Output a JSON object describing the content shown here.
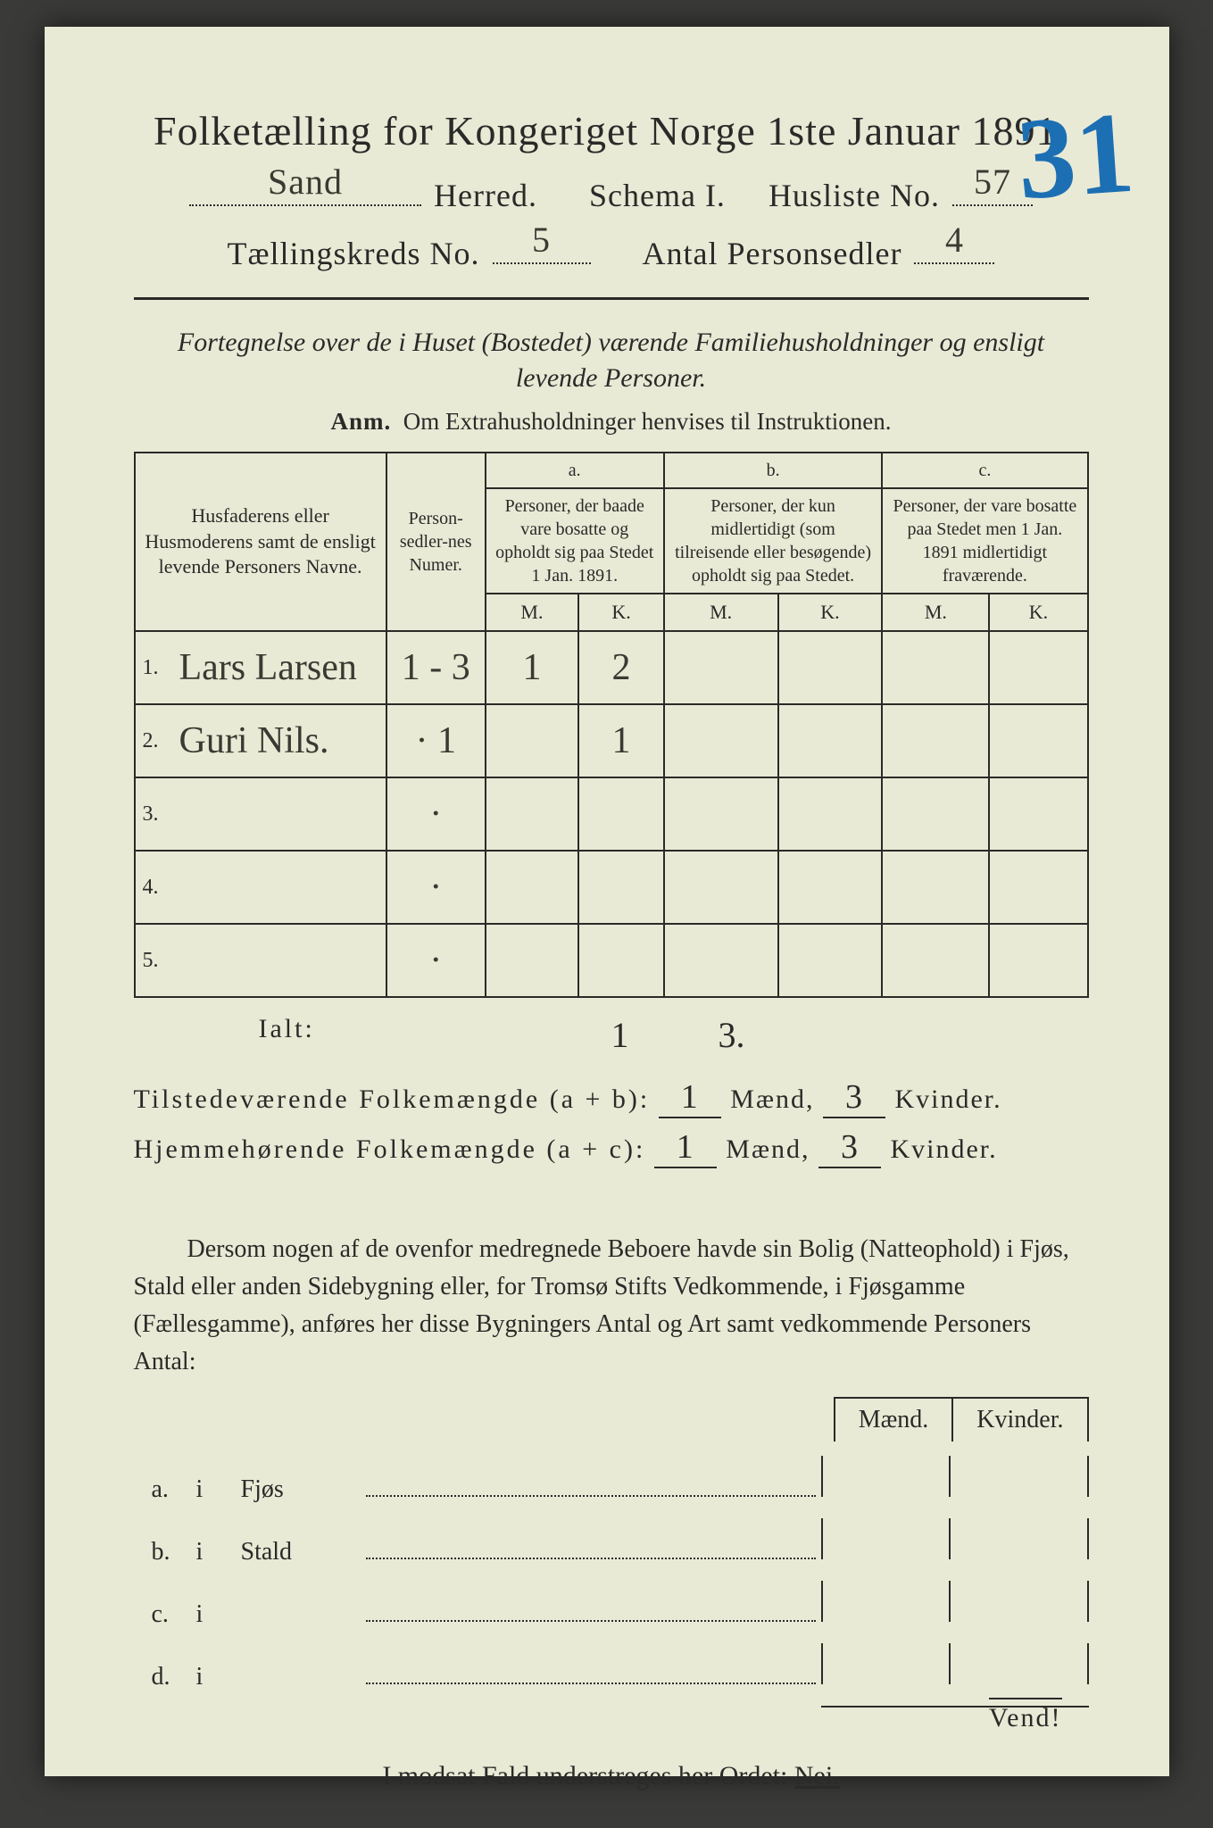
{
  "title": "Folketælling for Kongeriget Norge 1ste Januar 1891.",
  "stamp": "31",
  "line2": {
    "herred_value": "Sand",
    "herred_label": "Herred.",
    "schema_label": "Schema I.",
    "husliste_label": "Husliste No.",
    "husliste_value": "57"
  },
  "line3": {
    "kreds_label": "Tællingskreds No.",
    "kreds_value": "5",
    "person_label": "Antal Personsedler",
    "person_value": "4"
  },
  "fortegnelse_pre": "Fortegnelse over de i Huset (Bostedet) værende Familiehusholdninger og ensligt",
  "fortegnelse_post": "levende Personer.",
  "anm_label": "Anm.",
  "anm_text": "Om Extrahusholdninger henvises til Instruktionen.",
  "table": {
    "col_names": "Husfaderens eller Husmoderens samt de ensligt levende Personers Navne.",
    "col_numer": "Person-sedler-nes Numer.",
    "col_a_head": "a.",
    "col_a": "Personer, der baade vare bosatte og opholdt sig paa Stedet 1 Jan. 1891.",
    "col_b_head": "b.",
    "col_b": "Personer, der kun midlertidigt (som tilreisende eller besøgende) opholdt sig paa Stedet.",
    "col_c_head": "c.",
    "col_c": "Personer, der vare bosatte paa Stedet men 1 Jan. 1891 midlertidigt fraværende.",
    "mk_m": "M.",
    "mk_k": "K.",
    "rows": [
      {
        "n": "1.",
        "name": "Lars Larsen",
        "numer": "1 - 3",
        "a_m": "1",
        "a_k": "2",
        "b_m": "",
        "b_k": "",
        "c_m": "",
        "c_k": ""
      },
      {
        "n": "2.",
        "name": "Guri Nils.",
        "numer": "· 1",
        "a_m": "",
        "a_k": "1",
        "b_m": "",
        "b_k": "",
        "c_m": "",
        "c_k": ""
      },
      {
        "n": "3.",
        "name": "",
        "numer": "·",
        "a_m": "",
        "a_k": "",
        "b_m": "",
        "b_k": "",
        "c_m": "",
        "c_k": ""
      },
      {
        "n": "4.",
        "name": "",
        "numer": "·",
        "a_m": "",
        "a_k": "",
        "b_m": "",
        "b_k": "",
        "c_m": "",
        "c_k": ""
      },
      {
        "n": "5.",
        "name": "",
        "numer": "·",
        "a_m": "",
        "a_k": "",
        "b_m": "",
        "b_k": "",
        "c_m": "",
        "c_k": ""
      }
    ]
  },
  "ialt": {
    "label": "Ialt:",
    "m": "1",
    "k": "3."
  },
  "sum1": {
    "label": "Tilstedeværende Folkemængde (a + b):",
    "m": "1",
    "mid": "Mænd,",
    "k": "3",
    "end": "Kvinder."
  },
  "sum2": {
    "label": "Hjemmehørende Folkemængde (a + c):",
    "m": "1",
    "mid": "Mænd,",
    "k": "3",
    "end": "Kvinder."
  },
  "para": "Dersom nogen af de ovenfor medregnede Beboere havde sin Bolig (Natteophold) i Fjøs, Stald eller anden Sidebygning eller, for Tromsø Stifts Vedkommende, i Fjøsgamme (Fællesgamme), anføres her disse Bygningers Antal og Art samt vedkommende Personers Antal:",
  "mk": {
    "m": "Mænd.",
    "k": "Kvinder."
  },
  "side": [
    {
      "tag": "a.",
      "i": "i",
      "lbl": "Fjøs"
    },
    {
      "tag": "b.",
      "i": "i",
      "lbl": "Stald"
    },
    {
      "tag": "c.",
      "i": "i",
      "lbl": ""
    },
    {
      "tag": "d.",
      "i": "i",
      "lbl": ""
    }
  ],
  "nei": {
    "pre": "I modsat Fald understreges her Ordet: ",
    "word": "Nei."
  },
  "vend": "Vend!",
  "colors": {
    "paper": "#e9ead6",
    "ink": "#2a2a28",
    "hand": "#3b3a32",
    "stamp": "#1d6fb3",
    "bg": "#3a3a38"
  }
}
